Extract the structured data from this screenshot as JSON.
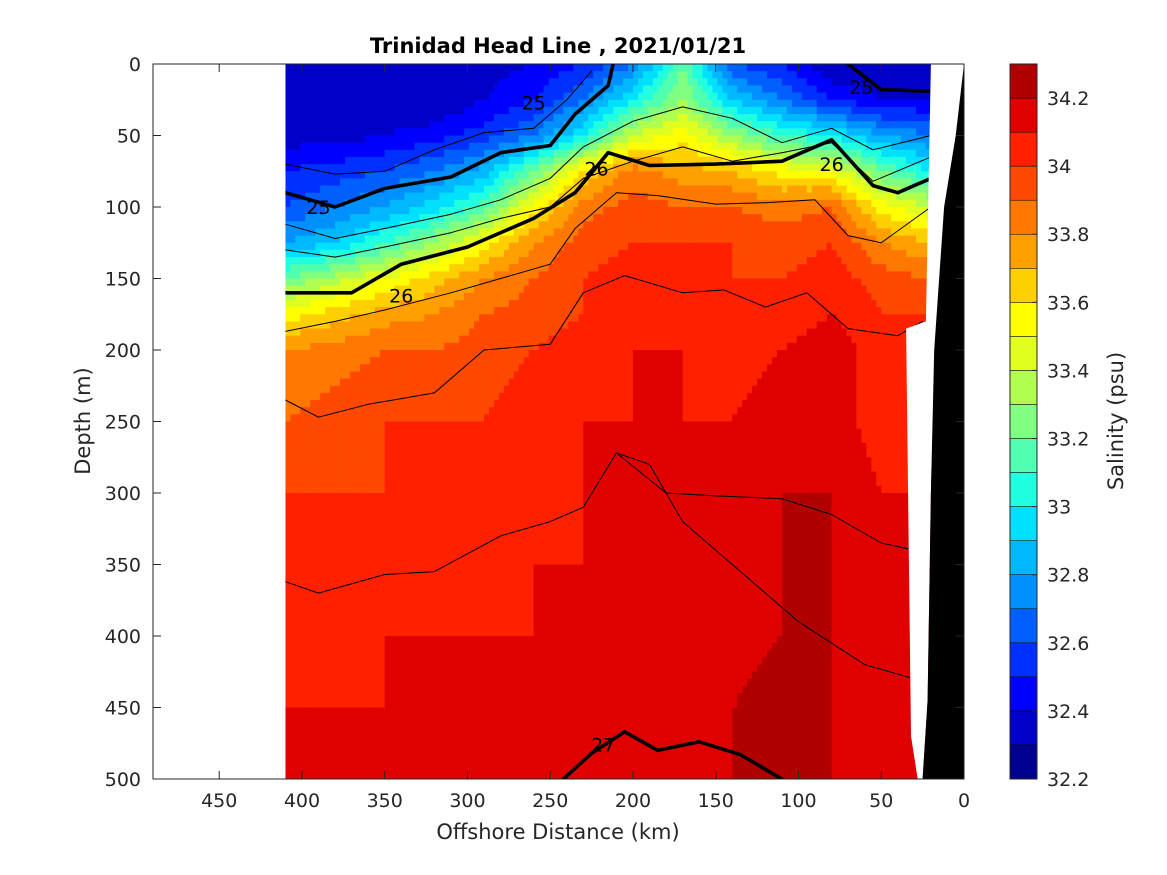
{
  "chart_data": {
    "type": "heatmap",
    "title": "Trinidad Head Line , 2021/01/21",
    "xlabel": "Offshore Distance (km)",
    "ylabel": "Depth (m)",
    "colorbar_label": "Salinity (psu)",
    "xlim": [
      490,
      0
    ],
    "ylim": [
      0,
      500
    ],
    "x_reversed": true,
    "y_reversed": true,
    "x_ticks": [
      {
        "value": 450,
        "label": "450"
      },
      {
        "value": 400,
        "label": "400"
      },
      {
        "value": 350,
        "label": "350"
      },
      {
        "value": 300,
        "label": "300"
      },
      {
        "value": 250,
        "label": "250"
      },
      {
        "value": 200,
        "label": "200"
      },
      {
        "value": 150,
        "label": "150"
      },
      {
        "value": 100,
        "label": "100"
      },
      {
        "value": 50,
        "label": "50"
      },
      {
        "value": 0,
        "label": "0"
      }
    ],
    "y_ticks": [
      {
        "value": 0,
        "label": "0"
      },
      {
        "value": 50,
        "label": "50"
      },
      {
        "value": 100,
        "label": "100"
      },
      {
        "value": 150,
        "label": "150"
      },
      {
        "value": 200,
        "label": "200"
      },
      {
        "value": 250,
        "label": "250"
      },
      {
        "value": 300,
        "label": "300"
      },
      {
        "value": 350,
        "label": "350"
      },
      {
        "value": 400,
        "label": "400"
      },
      {
        "value": 450,
        "label": "450"
      },
      {
        "value": 500,
        "label": "500"
      }
    ],
    "colorbar": {
      "range": [
        32.2,
        34.3
      ],
      "levels": [
        32.2,
        32.3,
        32.4,
        32.5,
        32.6,
        32.7,
        32.8,
        32.9,
        33.0,
        33.1,
        33.2,
        33.3,
        33.4,
        33.5,
        33.6,
        33.7,
        33.8,
        33.9,
        34.0,
        34.1,
        34.2,
        34.3
      ],
      "colors": [
        "#00008f",
        "#0000c8",
        "#0000ff",
        "#0030ff",
        "#0060ff",
        "#0090ff",
        "#00b8ff",
        "#00e0ff",
        "#20ffdf",
        "#50ffaf",
        "#80ff80",
        "#b0ff50",
        "#e0ff20",
        "#ffff00",
        "#ffd000",
        "#ffa000",
        "#ff7800",
        "#ff4800",
        "#ff2000",
        "#e00000",
        "#b00000"
      ],
      "ticks": [
        {
          "value": 32.2,
          "label": "32.2"
        },
        {
          "value": 32.4,
          "label": "32.4"
        },
        {
          "value": 32.6,
          "label": "32.6"
        },
        {
          "value": 32.8,
          "label": "32.8"
        },
        {
          "value": 33.0,
          "label": "33"
        },
        {
          "value": 33.2,
          "label": "33.2"
        },
        {
          "value": 33.4,
          "label": "33.4"
        },
        {
          "value": 33.6,
          "label": "33.6"
        },
        {
          "value": 33.8,
          "label": "33.8"
        },
        {
          "value": 34.0,
          "label": "34"
        },
        {
          "value": 34.2,
          "label": "34.2"
        }
      ]
    },
    "data_extent_km": [
      410,
      20
    ],
    "salinity_grid": {
      "x_km": [
        410,
        380,
        350,
        320,
        290,
        260,
        230,
        200,
        170,
        140,
        110,
        80,
        50,
        20
      ],
      "depth_m": [
        0,
        25,
        50,
        75,
        100,
        125,
        150,
        175,
        200,
        250,
        300,
        350,
        400,
        450,
        500
      ],
      "values": [
        [
          32.3,
          32.3,
          32.3,
          32.3,
          32.35,
          32.4,
          32.5,
          32.7,
          33.2,
          32.6,
          32.5,
          32.3,
          32.3,
          32.3
        ],
        [
          32.3,
          32.3,
          32.3,
          32.3,
          32.4,
          32.5,
          32.7,
          33.0,
          33.3,
          32.9,
          32.7,
          32.5,
          32.4,
          32.4
        ],
        [
          32.35,
          32.35,
          32.4,
          32.45,
          32.55,
          32.7,
          33.0,
          33.4,
          33.55,
          33.3,
          33.1,
          33.0,
          32.8,
          32.7
        ],
        [
          32.5,
          32.55,
          32.6,
          32.7,
          32.85,
          33.2,
          33.6,
          33.85,
          33.75,
          33.7,
          33.55,
          33.5,
          33.2,
          33.0
        ],
        [
          32.6,
          32.7,
          32.8,
          32.95,
          33.15,
          33.55,
          33.85,
          33.95,
          33.9,
          33.9,
          33.85,
          33.9,
          33.55,
          33.4
        ],
        [
          32.8,
          32.9,
          33.1,
          33.3,
          33.55,
          33.8,
          33.95,
          34.0,
          34.0,
          34.0,
          33.95,
          34.0,
          33.8,
          33.7
        ],
        [
          33.2,
          33.35,
          33.5,
          33.65,
          33.8,
          33.9,
          34.0,
          34.05,
          34.05,
          34.0,
          34.0,
          34.05,
          33.95,
          33.9
        ],
        [
          33.55,
          33.65,
          33.75,
          33.8,
          33.9,
          33.95,
          34.0,
          34.05,
          34.05,
          34.05,
          34.05,
          34.1,
          34.0,
          34.0
        ],
        [
          33.8,
          33.85,
          33.9,
          33.9,
          33.95,
          34.0,
          34.05,
          34.1,
          34.1,
          34.05,
          34.1,
          34.15,
          34.05,
          34.0
        ],
        [
          33.9,
          33.95,
          34.0,
          34.0,
          34.0,
          34.05,
          34.1,
          34.1,
          34.1,
          34.1,
          34.15,
          34.15,
          34.05,
          34.05
        ],
        [
          34.0,
          34.0,
          34.0,
          34.0,
          34.05,
          34.05,
          34.1,
          34.1,
          34.1,
          34.1,
          34.2,
          34.2,
          34.1,
          34.1
        ],
        [
          34.0,
          34.0,
          34.05,
          34.05,
          34.05,
          34.1,
          34.1,
          34.1,
          34.1,
          34.15,
          34.2,
          34.2,
          34.15,
          34.1
        ],
        [
          34.05,
          34.05,
          34.1,
          34.1,
          34.1,
          34.1,
          34.1,
          34.15,
          34.15,
          34.15,
          34.2,
          34.2,
          34.15,
          34.1
        ],
        [
          34.1,
          34.1,
          34.1,
          34.1,
          34.15,
          34.15,
          34.15,
          34.15,
          34.15,
          34.2,
          34.25,
          34.2,
          34.15,
          34.1
        ],
        [
          34.1,
          34.1,
          34.15,
          34.15,
          34.15,
          34.2,
          34.2,
          34.2,
          34.2,
          34.2,
          34.25,
          34.2,
          34.15,
          34.1
        ]
      ]
    },
    "contours": [
      {
        "label": "25",
        "width": "thick",
        "points": [
          [
            410,
            90
          ],
          [
            380,
            100
          ],
          [
            350,
            87
          ],
          [
            310,
            79
          ],
          [
            280,
            62
          ],
          [
            250,
            57
          ],
          [
            235,
            35
          ],
          [
            215,
            15
          ],
          [
            212,
            0
          ]
        ],
        "label_at": [
          [
            390,
            100
          ],
          [
            260,
            27
          ]
        ]
      },
      {
        "label": "25",
        "width": "thick",
        "points": [
          [
            70,
            0
          ],
          [
            50,
            18
          ],
          [
            20,
            19
          ]
        ],
        "label_at": [
          [
            62,
            16
          ]
        ]
      },
      {
        "label": "26",
        "width": "thick",
        "points": [
          [
            410,
            160
          ],
          [
            370,
            160
          ],
          [
            340,
            140
          ],
          [
            300,
            128
          ],
          [
            260,
            108
          ],
          [
            235,
            90
          ],
          [
            215,
            62
          ],
          [
            190,
            71
          ],
          [
            150,
            70
          ],
          [
            110,
            68
          ],
          [
            80,
            53
          ],
          [
            55,
            85
          ],
          [
            40,
            90
          ],
          [
            20,
            80
          ]
        ],
        "label_at": [
          [
            340,
            162
          ],
          [
            222,
            73
          ],
          [
            80,
            70
          ]
        ]
      },
      {
        "label": "27",
        "width": "thick",
        "points": [
          [
            242,
            500
          ],
          [
            225,
            482
          ],
          [
            205,
            467
          ],
          [
            185,
            480
          ],
          [
            160,
            474
          ],
          [
            135,
            483
          ],
          [
            110,
            500
          ]
        ],
        "label_at": [
          [
            218,
            476
          ]
        ]
      },
      {
        "label": "",
        "width": "thin",
        "points": [
          [
            410,
            70
          ],
          [
            380,
            77
          ],
          [
            350,
            75
          ],
          [
            320,
            60
          ],
          [
            290,
            48
          ],
          [
            260,
            45
          ],
          [
            240,
            25
          ],
          [
            225,
            5
          ]
        ]
      },
      {
        "label": "",
        "width": "thin",
        "points": [
          [
            410,
            112
          ],
          [
            380,
            122
          ],
          [
            350,
            115
          ],
          [
            310,
            105
          ],
          [
            280,
            95
          ],
          [
            250,
            80
          ],
          [
            230,
            58
          ],
          [
            200,
            40
          ],
          [
            170,
            30
          ],
          [
            140,
            38
          ],
          [
            110,
            55
          ],
          [
            80,
            45
          ],
          [
            55,
            60
          ],
          [
            20,
            50
          ]
        ]
      },
      {
        "label": "",
        "width": "thin",
        "points": [
          [
            410,
            130
          ],
          [
            380,
            135
          ],
          [
            350,
            128
          ],
          [
            310,
            118
          ],
          [
            280,
            108
          ],
          [
            250,
            100
          ],
          [
            230,
            80
          ],
          [
            200,
            68
          ],
          [
            170,
            58
          ],
          [
            140,
            68
          ],
          [
            110,
            62
          ],
          [
            80,
            55
          ],
          [
            55,
            82
          ],
          [
            20,
            65
          ]
        ]
      },
      {
        "label": "",
        "width": "thin",
        "points": [
          [
            410,
            187
          ],
          [
            380,
            180
          ],
          [
            350,
            172
          ],
          [
            310,
            160
          ],
          [
            280,
            150
          ],
          [
            250,
            140
          ],
          [
            235,
            115
          ],
          [
            210,
            90
          ],
          [
            185,
            92
          ],
          [
            150,
            98
          ],
          [
            120,
            97
          ],
          [
            90,
            95
          ],
          [
            70,
            120
          ],
          [
            50,
            125
          ],
          [
            20,
            100
          ]
        ]
      },
      {
        "label": "",
        "width": "thin",
        "points": [
          [
            410,
            235
          ],
          [
            390,
            247
          ],
          [
            360,
            238
          ],
          [
            320,
            230
          ],
          [
            290,
            200
          ],
          [
            250,
            196
          ],
          [
            230,
            160
          ],
          [
            205,
            148
          ],
          [
            170,
            160
          ],
          [
            145,
            158
          ],
          [
            120,
            170
          ],
          [
            95,
            160
          ],
          [
            70,
            185
          ],
          [
            40,
            190
          ],
          [
            25,
            180
          ]
        ]
      },
      {
        "label": "",
        "width": "thin",
        "points": [
          [
            410,
            362
          ],
          [
            390,
            370
          ],
          [
            350,
            357
          ],
          [
            320,
            355
          ],
          [
            280,
            330
          ],
          [
            250,
            320
          ],
          [
            230,
            310
          ],
          [
            210,
            272
          ],
          [
            190,
            280
          ],
          [
            170,
            320
          ],
          [
            140,
            350
          ],
          [
            100,
            390
          ],
          [
            60,
            420
          ],
          [
            30,
            430
          ]
        ]
      },
      {
        "label": "",
        "width": "thin",
        "points": [
          [
            210,
            272
          ],
          [
            180,
            300
          ],
          [
            150,
            302
          ],
          [
            110,
            304
          ],
          [
            80,
            315
          ],
          [
            50,
            335
          ],
          [
            30,
            340
          ],
          [
            25,
            380
          ]
        ]
      }
    ],
    "seafloor": {
      "points": [
        [
          25,
          500
        ],
        [
          22,
          445
        ],
        [
          20,
          300
        ],
        [
          18,
          200
        ],
        [
          12,
          100
        ],
        [
          5,
          50
        ],
        [
          0,
          0
        ],
        [
          0,
          500
        ]
      ]
    },
    "masks": [
      {
        "points": [
          [
            490,
            0
          ],
          [
            410,
            0
          ],
          [
            410,
            500
          ],
          [
            490,
            500
          ]
        ]
      },
      {
        "points": [
          [
            20,
            0
          ],
          [
            0,
            0
          ],
          [
            5,
            50
          ],
          [
            12,
            100
          ],
          [
            18,
            200
          ],
          [
            20,
            300
          ],
          [
            22,
            445
          ],
          [
            25,
            500
          ],
          [
            28,
            500
          ],
          [
            32,
            470
          ],
          [
            35,
            185
          ],
          [
            23,
            180
          ]
        ]
      }
    ]
  }
}
